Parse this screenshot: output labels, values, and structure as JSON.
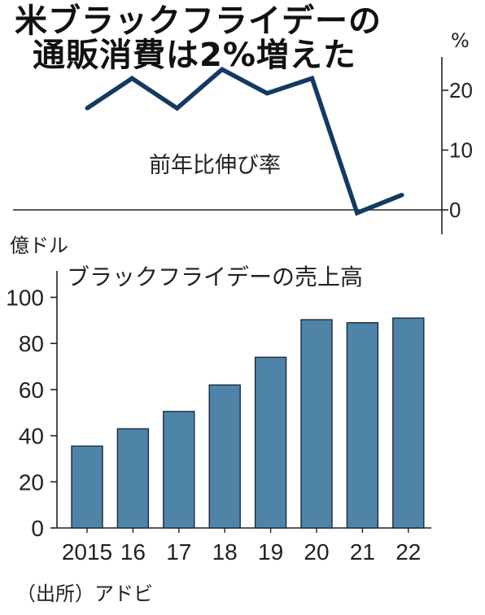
{
  "title_lines": [
    "米ブラックフライデーの",
    "通販消費は2%増えた"
  ],
  "source": "（出所）アドビ",
  "colors": {
    "line": "#123a63",
    "bar": "#4f84a9",
    "bar_stroke": "#1c2b3a",
    "axis": "#222222"
  },
  "chart_data": [
    {
      "type": "line",
      "label": "前年比伸び率",
      "unit_label": "%",
      "x": [
        "2015",
        "16",
        "17",
        "18",
        "19",
        "20",
        "21",
        "22"
      ],
      "values": [
        17,
        22,
        17,
        23.5,
        19.5,
        22,
        -0.5,
        2.5
      ],
      "yticks": [
        0,
        10,
        20
      ],
      "ylim": [
        -4,
        26
      ],
      "axis_side": "right",
      "zero_line": true
    },
    {
      "type": "bar",
      "label": "ブラックフライデーの売上高",
      "unit_label": "億ドル",
      "categories": [
        "2015",
        "16",
        "17",
        "18",
        "19",
        "20",
        "21",
        "22"
      ],
      "values": [
        35.5,
        43,
        50.5,
        62,
        74,
        90.3,
        89,
        91
      ],
      "yticks": [
        0,
        20,
        40,
        60,
        80,
        100
      ],
      "ylim": [
        0,
        110
      ]
    }
  ]
}
